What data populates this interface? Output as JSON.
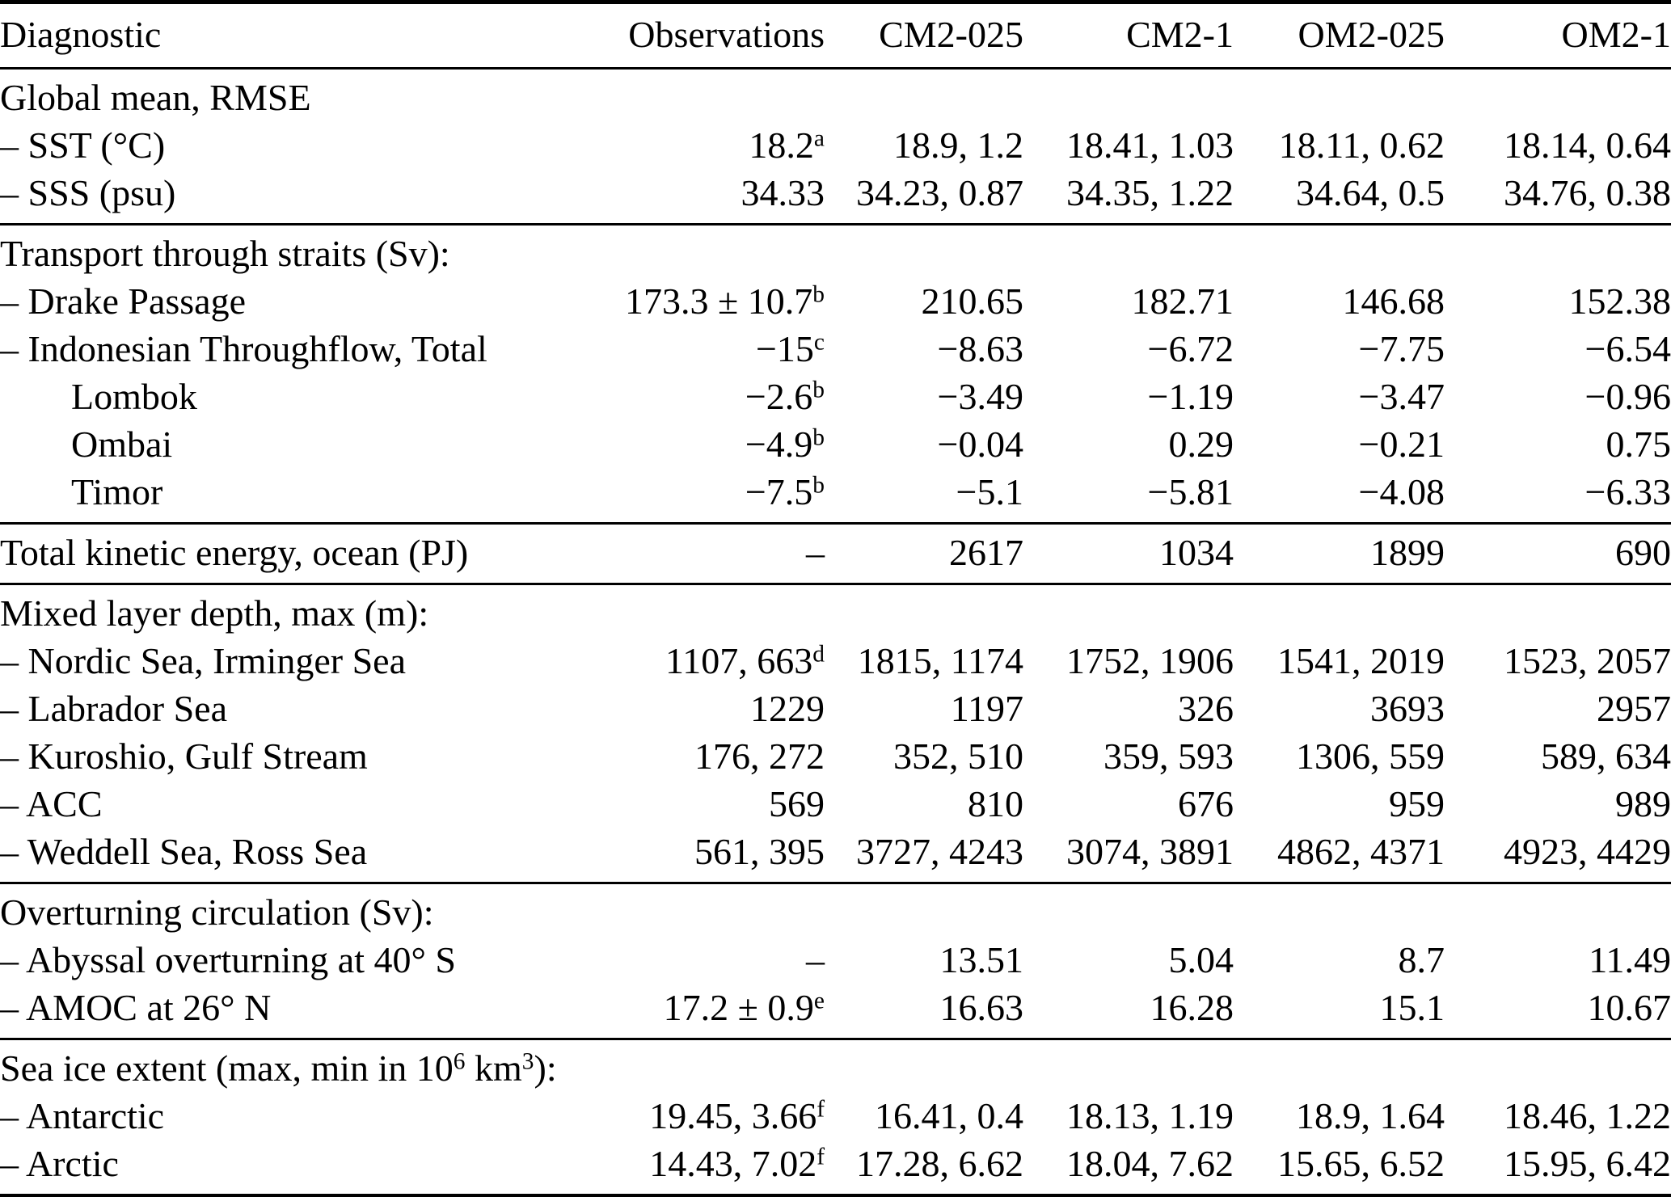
{
  "colors": {
    "text": "#000000",
    "background": "#ffffff",
    "rule": "#000000"
  },
  "table": {
    "columns": [
      "Diagnostic",
      "Observations",
      "CM2-025",
      "CM2-1",
      "OM2-025",
      "OM2-1"
    ],
    "footnote_markers_used": [
      "a",
      "b",
      "c",
      "d",
      "e",
      "f"
    ],
    "sections": [
      {
        "rows": [
          {
            "label": [
              {
                "t": "Global mean, RMSE"
              }
            ],
            "indent": 0,
            "cells": []
          },
          {
            "label": [
              {
                "t": "– SST (°C)"
              }
            ],
            "indent": 0,
            "cells": [
              [
                {
                  "t": "18.2"
                },
                {
                  "s": "a"
                }
              ],
              [
                {
                  "t": "18.9, 1.2"
                }
              ],
              [
                {
                  "t": "18.41, 1.03"
                }
              ],
              [
                {
                  "t": "18.11, 0.62"
                }
              ],
              [
                {
                  "t": "18.14, 0.64"
                }
              ]
            ]
          },
          {
            "label": [
              {
                "t": "– SSS (psu)"
              }
            ],
            "indent": 0,
            "cells": [
              [
                {
                  "t": "34.33"
                }
              ],
              [
                {
                  "t": "34.23, 0.87"
                }
              ],
              [
                {
                  "t": "34.35, 1.22"
                }
              ],
              [
                {
                  "t": "34.64, 0.5"
                }
              ],
              [
                {
                  "t": "34.76, 0.38"
                }
              ]
            ]
          }
        ]
      },
      {
        "rows": [
          {
            "label": [
              {
                "t": "Transport through straits (Sv):"
              }
            ],
            "indent": 0,
            "cells": []
          },
          {
            "label": [
              {
                "t": "– Drake Passage"
              }
            ],
            "indent": 0,
            "cells": [
              [
                {
                  "t": "173.3 ± 10.7"
                },
                {
                  "s": "b"
                }
              ],
              [
                {
                  "t": "210.65"
                }
              ],
              [
                {
                  "t": "182.71"
                }
              ],
              [
                {
                  "t": "146.68"
                }
              ],
              [
                {
                  "t": "152.38"
                }
              ]
            ]
          },
          {
            "label": [
              {
                "t": "– Indonesian Throughflow, Total"
              }
            ],
            "indent": 0,
            "cells": [
              [
                {
                  "t": "−15"
                },
                {
                  "s": "c"
                }
              ],
              [
                {
                  "t": "−8.63"
                }
              ],
              [
                {
                  "t": "−6.72"
                }
              ],
              [
                {
                  "t": "−7.75"
                }
              ],
              [
                {
                  "t": "−6.54"
                }
              ]
            ]
          },
          {
            "label": [
              {
                "t": "Lombok"
              }
            ],
            "indent": 1,
            "cells": [
              [
                {
                  "t": "−2.6"
                },
                {
                  "s": "b"
                }
              ],
              [
                {
                  "t": "−3.49"
                }
              ],
              [
                {
                  "t": "−1.19"
                }
              ],
              [
                {
                  "t": "−3.47"
                }
              ],
              [
                {
                  "t": "−0.96"
                }
              ]
            ]
          },
          {
            "label": [
              {
                "t": "Ombai"
              }
            ],
            "indent": 1,
            "cells": [
              [
                {
                  "t": "−4.9"
                },
                {
                  "s": "b"
                }
              ],
              [
                {
                  "t": "−0.04"
                }
              ],
              [
                {
                  "t": "0.29"
                }
              ],
              [
                {
                  "t": "−0.21"
                }
              ],
              [
                {
                  "t": "0.75"
                }
              ]
            ]
          },
          {
            "label": [
              {
                "t": "Timor"
              }
            ],
            "indent": 1,
            "cells": [
              [
                {
                  "t": "−7.5"
                },
                {
                  "s": "b"
                }
              ],
              [
                {
                  "t": "−5.1"
                }
              ],
              [
                {
                  "t": "−5.81"
                }
              ],
              [
                {
                  "t": "−4.08"
                }
              ],
              [
                {
                  "t": "−6.33"
                }
              ]
            ]
          }
        ]
      },
      {
        "rows": [
          {
            "label": [
              {
                "t": "Total kinetic energy, ocean (PJ)"
              }
            ],
            "indent": 0,
            "cells": [
              [
                {
                  "t": "–"
                }
              ],
              [
                {
                  "t": "2617"
                }
              ],
              [
                {
                  "t": "1034"
                }
              ],
              [
                {
                  "t": "1899"
                }
              ],
              [
                {
                  "t": "690"
                }
              ]
            ]
          }
        ]
      },
      {
        "rows": [
          {
            "label": [
              {
                "t": "Mixed layer depth, max (m):"
              }
            ],
            "indent": 0,
            "cells": []
          },
          {
            "label": [
              {
                "t": "– Nordic Sea, Irminger Sea"
              }
            ],
            "indent": 0,
            "cells": [
              [
                {
                  "t": "1107, 663"
                },
                {
                  "s": "d"
                }
              ],
              [
                {
                  "t": "1815, 1174"
                }
              ],
              [
                {
                  "t": "1752, 1906"
                }
              ],
              [
                {
                  "t": "1541, 2019"
                }
              ],
              [
                {
                  "t": "1523, 2057"
                }
              ]
            ]
          },
          {
            "label": [
              {
                "t": "– Labrador Sea"
              }
            ],
            "indent": 0,
            "cells": [
              [
                {
                  "t": "1229"
                }
              ],
              [
                {
                  "t": "1197"
                }
              ],
              [
                {
                  "t": "326"
                }
              ],
              [
                {
                  "t": "3693"
                }
              ],
              [
                {
                  "t": "2957"
                }
              ]
            ]
          },
          {
            "label": [
              {
                "t": "– Kuroshio, Gulf Stream"
              }
            ],
            "indent": 0,
            "cells": [
              [
                {
                  "t": "176, 272"
                }
              ],
              [
                {
                  "t": "352, 510"
                }
              ],
              [
                {
                  "t": "359, 593"
                }
              ],
              [
                {
                  "t": "1306, 559"
                }
              ],
              [
                {
                  "t": "589, 634"
                }
              ]
            ]
          },
          {
            "label": [
              {
                "t": "– ACC"
              }
            ],
            "indent": 0,
            "cells": [
              [
                {
                  "t": "569"
                }
              ],
              [
                {
                  "t": "810"
                }
              ],
              [
                {
                  "t": "676"
                }
              ],
              [
                {
                  "t": "959"
                }
              ],
              [
                {
                  "t": "989"
                }
              ]
            ]
          },
          {
            "label": [
              {
                "t": "– Weddell Sea, Ross Sea"
              }
            ],
            "indent": 0,
            "cells": [
              [
                {
                  "t": "561, 395"
                }
              ],
              [
                {
                  "t": "3727, 4243"
                }
              ],
              [
                {
                  "t": "3074, 3891"
                }
              ],
              [
                {
                  "t": "4862, 4371"
                }
              ],
              [
                {
                  "t": "4923, 4429"
                }
              ]
            ]
          }
        ]
      },
      {
        "rows": [
          {
            "label": [
              {
                "t": "Overturning circulation (Sv):"
              }
            ],
            "indent": 0,
            "cells": []
          },
          {
            "label": [
              {
                "t": "– Abyssal overturning at 40° S"
              }
            ],
            "indent": 0,
            "cells": [
              [
                {
                  "t": "–"
                }
              ],
              [
                {
                  "t": "13.51"
                }
              ],
              [
                {
                  "t": "5.04"
                }
              ],
              [
                {
                  "t": "8.7"
                }
              ],
              [
                {
                  "t": "11.49"
                }
              ]
            ]
          },
          {
            "label": [
              {
                "t": "– AMOC at 26° N"
              }
            ],
            "indent": 0,
            "cells": [
              [
                {
                  "t": "17.2 ± 0.9"
                },
                {
                  "s": "e"
                }
              ],
              [
                {
                  "t": "16.63"
                }
              ],
              [
                {
                  "t": "16.28"
                }
              ],
              [
                {
                  "t": "15.1"
                }
              ],
              [
                {
                  "t": "10.67"
                }
              ]
            ]
          }
        ]
      },
      {
        "rows": [
          {
            "label": [
              {
                "t": "Sea ice extent (max, min in 10"
              },
              {
                "s": "6"
              },
              {
                "t": " km"
              },
              {
                "s": "3"
              },
              {
                "t": "):"
              }
            ],
            "indent": 0,
            "cells": []
          },
          {
            "label": [
              {
                "t": "– Antarctic"
              }
            ],
            "indent": 0,
            "cells": [
              [
                {
                  "t": "19.45, 3.66"
                },
                {
                  "s": "f"
                }
              ],
              [
                {
                  "t": "16.41, 0.4"
                }
              ],
              [
                {
                  "t": "18.13, 1.19"
                }
              ],
              [
                {
                  "t": "18.9, 1.64"
                }
              ],
              [
                {
                  "t": "18.46, 1.22"
                }
              ]
            ]
          },
          {
            "label": [
              {
                "t": "– Arctic"
              }
            ],
            "indent": 0,
            "cells": [
              [
                {
                  "t": "14.43, 7.02"
                },
                {
                  "s": "f"
                }
              ],
              [
                {
                  "t": "17.28, 6.62"
                }
              ],
              [
                {
                  "t": "18.04, 7.62"
                }
              ],
              [
                {
                  "t": "15.65, 6.52"
                }
              ],
              [
                {
                  "t": "15.95, 6.42"
                }
              ]
            ]
          }
        ]
      }
    ]
  }
}
